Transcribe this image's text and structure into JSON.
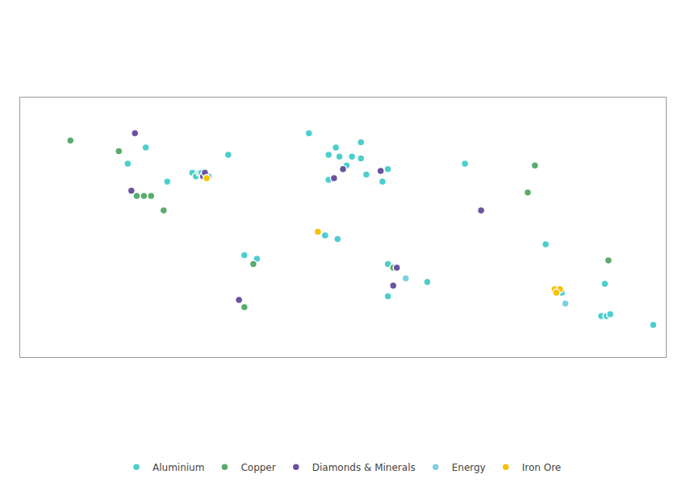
{
  "chart_data": {
    "type": "scatter",
    "xlim": [
      -180,
      180
    ],
    "ylim": [
      -60,
      85
    ],
    "tick_labels": false,
    "grid": false,
    "legend": "bottom",
    "series": [
      {
        "name": "Aluminium",
        "color": "#4dcece",
        "x": [
          -110,
          -64,
          -120,
          -98,
          -84,
          -82,
          -80,
          -75,
          -79,
          -55,
          -48,
          -19,
          10,
          -4,
          -2,
          -8,
          2,
          10,
          5,
          -8,
          13,
          22,
          25,
          68,
          113,
          -10,
          -3,
          25,
          25,
          47,
          122,
          144,
          147,
          149,
          146,
          173
        ],
        "values": [
          57,
          53,
          48,
          38,
          43,
          41,
          43,
          41,
          43,
          -3,
          -5,
          65,
          60,
          57,
          52,
          53,
          47,
          51,
          52,
          39,
          42,
          38,
          45,
          48,
          3,
          8,
          6,
          -8,
          -26,
          -18,
          -24,
          -37,
          -37,
          -36,
          -19,
          -42
        ]
      },
      {
        "name": "Copper",
        "color": "#5aab6e",
        "x": [
          -152,
          -125,
          -115,
          -111,
          -107,
          -100,
          -50,
          -55,
          103,
          28,
          148,
          107
        ],
        "values": [
          61,
          55,
          30,
          30,
          30,
          22,
          -8,
          -32,
          32,
          -10,
          -6,
          47
        ]
      },
      {
        "name": "Diamonds & Minerals",
        "color": "#6b52a0",
        "x": [
          -116,
          -118,
          -78,
          -77,
          -58,
          0,
          -5,
          21,
          77,
          30,
          28
        ],
        "values": [
          65,
          33,
          41,
          43,
          -28,
          45,
          40,
          44,
          22,
          -10,
          -20
        ]
      },
      {
        "name": "Energy",
        "color": "#7dcfe0",
        "x": [
          35,
          124
        ],
        "values": [
          -16,
          -30
        ]
      },
      {
        "name": "Iron Ore",
        "color": "#f5c200",
        "x": [
          -76,
          -14,
          118,
          121,
          119
        ],
        "values": [
          40,
          10,
          -22,
          -22,
          -24
        ]
      }
    ]
  }
}
